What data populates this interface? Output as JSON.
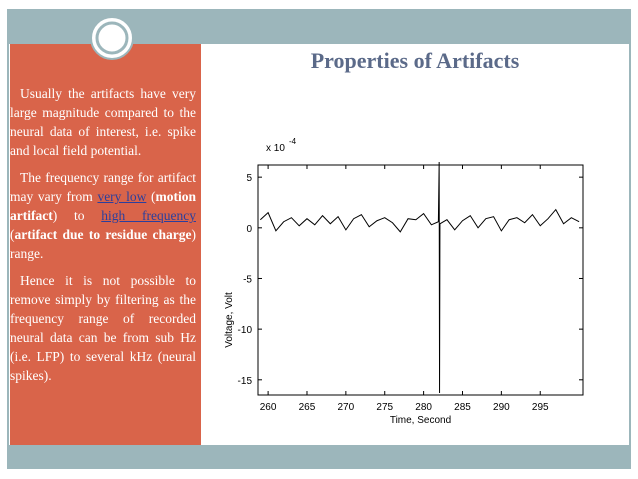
{
  "slide": {
    "title": "Properties of Artifacts",
    "paragraphs": [
      {
        "parts": [
          "Usually the artifacts have very large magnitude compared to the neural data of interest, i.e. spike and local field potential."
        ]
      },
      {
        "parts": [
          "The frequency range for artifact may vary from ",
          "very low",
          " (",
          "motion artifact",
          ") to ",
          "high frequency",
          " (",
          "artifact due to residue charge",
          ") range."
        ]
      },
      {
        "parts": [
          "Hence it is not possible to remove simply by filtering as the frequency range of recorded neural data can be from sub Hz (i.e. LFP) to several kHz (neural spikes)."
        ]
      }
    ]
  },
  "chart_data": {
    "type": "line",
    "x_label": "Time, Second",
    "y_label": "Voltage, Volt",
    "y_multiplier": "x 10",
    "y_multiplier_exponent": "-4",
    "color": "#000000",
    "x": [
      259,
      260,
      261,
      262,
      263,
      264,
      265,
      266,
      267,
      268,
      269,
      270,
      271,
      272,
      273,
      274,
      275,
      276,
      277,
      278,
      279,
      280,
      281,
      281.9,
      282,
      282.05,
      282.1,
      283,
      284,
      285,
      286,
      287,
      288,
      289,
      290,
      291,
      292,
      293,
      294,
      295,
      296,
      297,
      298,
      299,
      300
    ],
    "values": [
      0.8,
      1.5,
      -0.3,
      0.6,
      1.0,
      0.2,
      0.9,
      0.3,
      1.2,
      0.4,
      1.1,
      -0.2,
      0.9,
      1.3,
      0.1,
      0.7,
      1.0,
      0.5,
      -0.4,
      0.9,
      0.8,
      1.4,
      0.3,
      0.6,
      6.5,
      -16.3,
      0.4,
      0.8,
      -0.2,
      0.7,
      1.2,
      0.0,
      0.9,
      1.1,
      -0.3,
      0.8,
      1.0,
      0.5,
      1.3,
      0.2,
      0.9,
      1.8,
      0.4,
      1.0,
      0.6
    ],
    "xlim": [
      258.7,
      300.5
    ],
    "ylim": [
      -16.5,
      6.2
    ],
    "xticks": [
      260,
      265,
      270,
      275,
      280,
      285,
      290,
      295
    ],
    "yticks": [
      -15,
      -10,
      -5,
      0,
      5
    ]
  }
}
